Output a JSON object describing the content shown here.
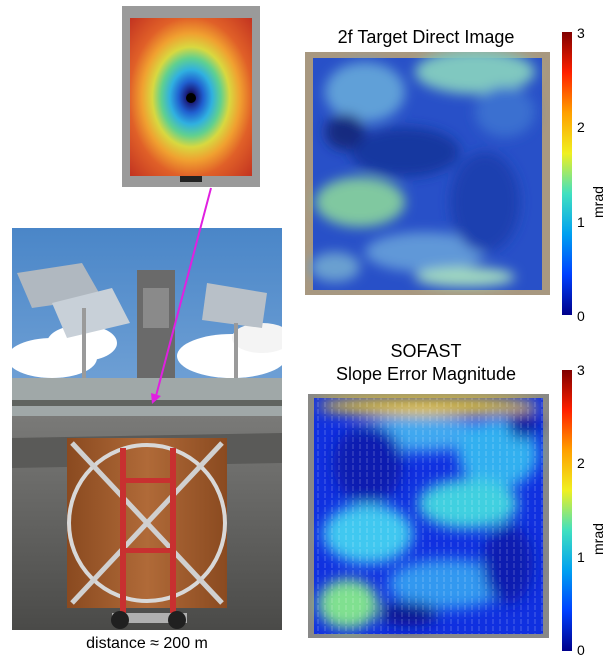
{
  "top_panel": {
    "title": "2f Target Direct Image"
  },
  "bottom_panel": {
    "title_line1": "SOFAST",
    "title_line2": "Slope Error Magnitude"
  },
  "colorbar": {
    "label": "mrad",
    "ticks": [
      "3",
      "2",
      "1",
      "0"
    ]
  },
  "photo_caption": "distance ≈ 200 m",
  "colors": {
    "arrow": "#e020e0"
  }
}
